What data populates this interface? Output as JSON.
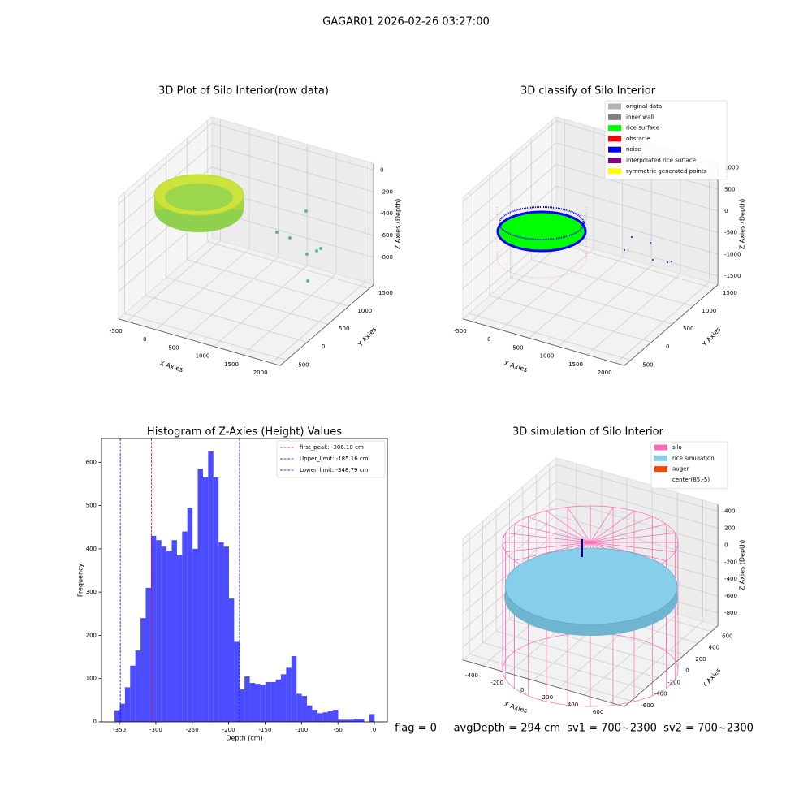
{
  "title": "GAGAR01 2026-02-26 03:27:00",
  "footer": "flag = 0     avgDepth = 294 cm  sv1 = 700~2300  sv2 = 700~2300",
  "chart_data": [
    {
      "type": "scatter3d",
      "title": "3D Plot of Silo Interior(row data)",
      "xlabel": "X Axies",
      "ylabel": "Y Axies",
      "zlabel": "Z Axies (Depth)",
      "xlim": [
        -650,
        2150
      ],
      "ylim": [
        -650,
        1600
      ],
      "zlim": [
        -1050,
        60
      ],
      "xticks": [
        -500,
        0,
        500,
        1000,
        1500,
        2000
      ],
      "yticks": [
        -500,
        0,
        500,
        1000,
        1500
      ],
      "zticks": [
        -800,
        -600,
        -400,
        -200,
        0
      ]
    },
    {
      "type": "scatter3d",
      "title": "3D classify of Silo Interior",
      "xlabel": "X Axies",
      "ylabel": "Y Axies",
      "zlabel": "Z Axies (Depth)",
      "xlim": [
        -650,
        2150
      ],
      "ylim": [
        -650,
        1600
      ],
      "zlim": [
        -1700,
        1100
      ],
      "xticks": [
        -500,
        0,
        500,
        1000,
        1500,
        2000
      ],
      "yticks": [
        -500,
        0,
        500,
        1000,
        1500
      ],
      "zticks": [
        -1500,
        -1000,
        -500,
        0,
        500,
        1000
      ],
      "legend": [
        {
          "name": "original data",
          "color": "#b3b3b3"
        },
        {
          "name": "inner wall",
          "color": "#808080"
        },
        {
          "name": "rice surface",
          "color": "#00ff00"
        },
        {
          "name": "obstacle",
          "color": "#ff0000"
        },
        {
          "name": "noise",
          "color": "#0000ff"
        },
        {
          "name": "interpolated rice surface",
          "color": "#800080"
        },
        {
          "name": "symmetric generated points",
          "color": "#ffff00"
        }
      ]
    },
    {
      "type": "histogram",
      "title": "Histogram of Z-Axies (Height) Values",
      "xlabel": "Depth (cm)",
      "ylabel": "Frequency",
      "color": "#0000ff",
      "alpha": 0.7,
      "bins": [
        -356.7,
        -349.56,
        -342.42,
        -335.28,
        -328.14,
        -321.0,
        -313.86,
        -306.72,
        -299.58,
        -292.44,
        -285.3,
        -278.16,
        -271.02,
        -263.88,
        -256.74,
        -249.6,
        -242.46,
        -235.32,
        -228.18,
        -221.04,
        -213.9,
        -206.76,
        -199.62,
        -192.48,
        -185.34,
        -178.2,
        -171.06,
        -163.92,
        -156.78,
        -149.64,
        -142.5,
        -135.36,
        -128.22,
        -121.08,
        -113.94,
        -106.8,
        -99.66,
        -92.52,
        -85.38,
        -78.24,
        -71.1,
        -63.96,
        -56.82,
        -49.68,
        -42.54,
        -35.4,
        -28.26,
        -21.12,
        -13.98,
        -6.84,
        0.3
      ],
      "counts": [
        27,
        42,
        80,
        130,
        165,
        240,
        310,
        430,
        420,
        405,
        395,
        420,
        385,
        440,
        495,
        400,
        585,
        565,
        625,
        565,
        415,
        405,
        285,
        185,
        75,
        105,
        90,
        88,
        85,
        92,
        92,
        98,
        110,
        125,
        152,
        65,
        60,
        38,
        28,
        20,
        22,
        25,
        28,
        5,
        5,
        5,
        7,
        7,
        0,
        18
      ],
      "lines": [
        {
          "name": "first_peak: -306.10 cm",
          "value": -306.1,
          "color": "#ff0000"
        },
        {
          "name": "Upper_limit: -185.16 cm",
          "value": -185.16,
          "color": "#0000ff"
        },
        {
          "name": "Lower_limit: -348.79 cm",
          "value": -348.79,
          "color": "#0000ff"
        }
      ],
      "xlim": [
        -374.6,
        17.8
      ],
      "ylim": [
        0,
        655
      ],
      "xticks": [
        -350,
        -300,
        -250,
        -200,
        -150,
        -100,
        -50,
        0
      ],
      "yticks": [
        0,
        100,
        200,
        300,
        400,
        500,
        600
      ]
    },
    {
      "type": "wireframe3d",
      "title": "3D simulation of Silo Interior",
      "xlabel": "X Axies",
      "ylabel": "Y Axies",
      "zlabel": "Z Axies (Depth)",
      "xlim": [
        -560,
        720
      ],
      "ylim": [
        -700,
        700
      ],
      "zlim": [
        -950,
        480
      ],
      "xticks": [
        -400,
        -200,
        0,
        200,
        400,
        600
      ],
      "yticks": [
        -600,
        -400,
        -200,
        0,
        200,
        400,
        600
      ],
      "zticks": [
        -800,
        -600,
        -400,
        -200,
        0,
        200,
        400
      ],
      "legend": [
        {
          "name": "silo",
          "color": "#ff69b4"
        },
        {
          "name": "rice simulation",
          "color": "#87ceeb"
        },
        {
          "name": "auger",
          "color": "#ff4500"
        },
        {
          "name": "center(85,-5)",
          "color": "#ffffff"
        }
      ]
    }
  ]
}
